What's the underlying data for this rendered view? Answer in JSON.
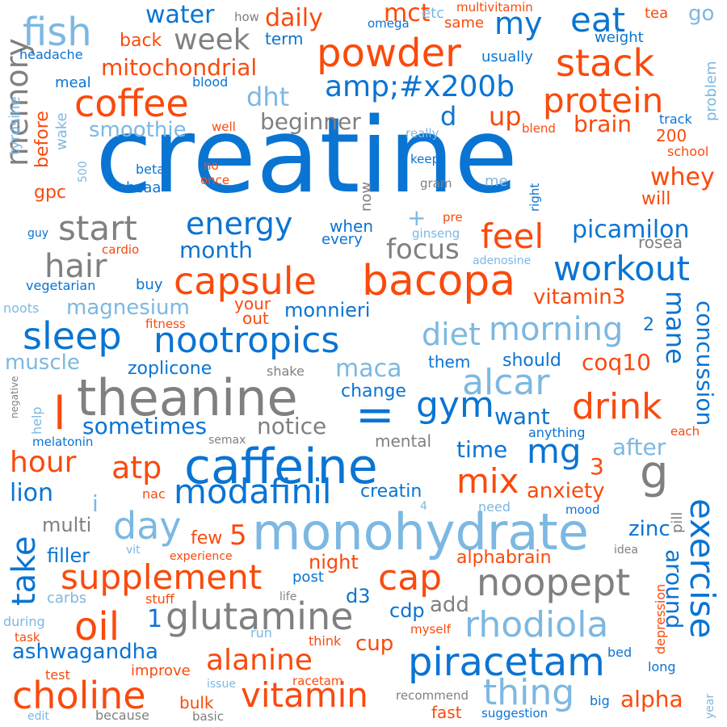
{
  "palette": {
    "dark_blue": "#0a74d3",
    "orange": "#fa4a0c",
    "light_blue": "#7cb8e2",
    "gray": "#808080"
  },
  "words": [
    "creatine",
    "caffeine",
    "monohydrate",
    "theanine",
    "bacopa",
    "capsule",
    "powder",
    "stack",
    "nootropics",
    "piracetam",
    "glutamine",
    "supplement",
    "choline",
    "vitamin",
    "sleep",
    "coffee",
    "protein",
    "fish",
    "workout",
    "alcar",
    "noopept",
    "rhodiola",
    "exercise",
    "modafinil",
    "day",
    "thing",
    "oil",
    "cap",
    "drink",
    "mix",
    "gym",
    "mg",
    "energy",
    "feel",
    "start",
    "hair",
    "memory",
    "take",
    "hour",
    "atp",
    "morning",
    "diet",
    "focus",
    "week",
    "eat",
    "my",
    "daily",
    "mct",
    "water",
    "mitochondrial",
    "amp;#x200b",
    "dht",
    "smoothie",
    "beginner",
    "brain",
    "up",
    "d",
    "whey",
    "picamilon",
    "month",
    "magnesium",
    "monnieri",
    "vitamin3",
    "concussion",
    "mane",
    "coq10",
    "zoplicone",
    "maca",
    "change",
    "notice",
    "sometimes",
    "want",
    "time",
    "after",
    "anxiety",
    "lion",
    "creatin",
    "zinc",
    "around",
    "alphabrain",
    "alpha",
    "cup",
    "alanine",
    "ashwagandha",
    "cdp",
    "add",
    "night",
    "post",
    "d3",
    "filler",
    "multi",
    "few",
    "5",
    "1",
    "l",
    "=",
    "g",
    "3",
    "i",
    "2",
    "+",
    "go",
    "tea",
    "weight",
    "multivitamin",
    "same",
    "etc",
    "omega",
    "how",
    "term",
    "back",
    "headache",
    "meal",
    "blood",
    "usually",
    "problem",
    "track",
    "school",
    "200",
    "will",
    "gpc",
    "bcaa",
    "beta",
    "no",
    "once",
    "keep",
    "gram",
    "me",
    "right",
    "pre",
    "ginseng",
    "when",
    "every",
    "now",
    "rosea",
    "adenosine",
    "before",
    "wake",
    "tyrosine",
    "500",
    "guy",
    "cardio",
    "vegetarian",
    "buy",
    "noots",
    "fitness",
    "your",
    "out",
    "muscle",
    "them",
    "should",
    "help",
    "negative",
    "melatonin",
    "semax",
    "mental",
    "shake",
    "anything",
    "each",
    "nac",
    "need",
    "mood",
    "4",
    "pill",
    "vit",
    "experience",
    "idea",
    "carbs",
    "stuff",
    "life",
    "during",
    "run",
    "myself",
    "think",
    "depression",
    "bed",
    "task",
    "improve",
    "issue",
    "racetam",
    "test",
    "long",
    "recommend",
    "big",
    "year",
    "edit",
    "because",
    "basic",
    "bulk",
    "fast",
    "suggestion",
    "really",
    "blend",
    "well"
  ]
}
